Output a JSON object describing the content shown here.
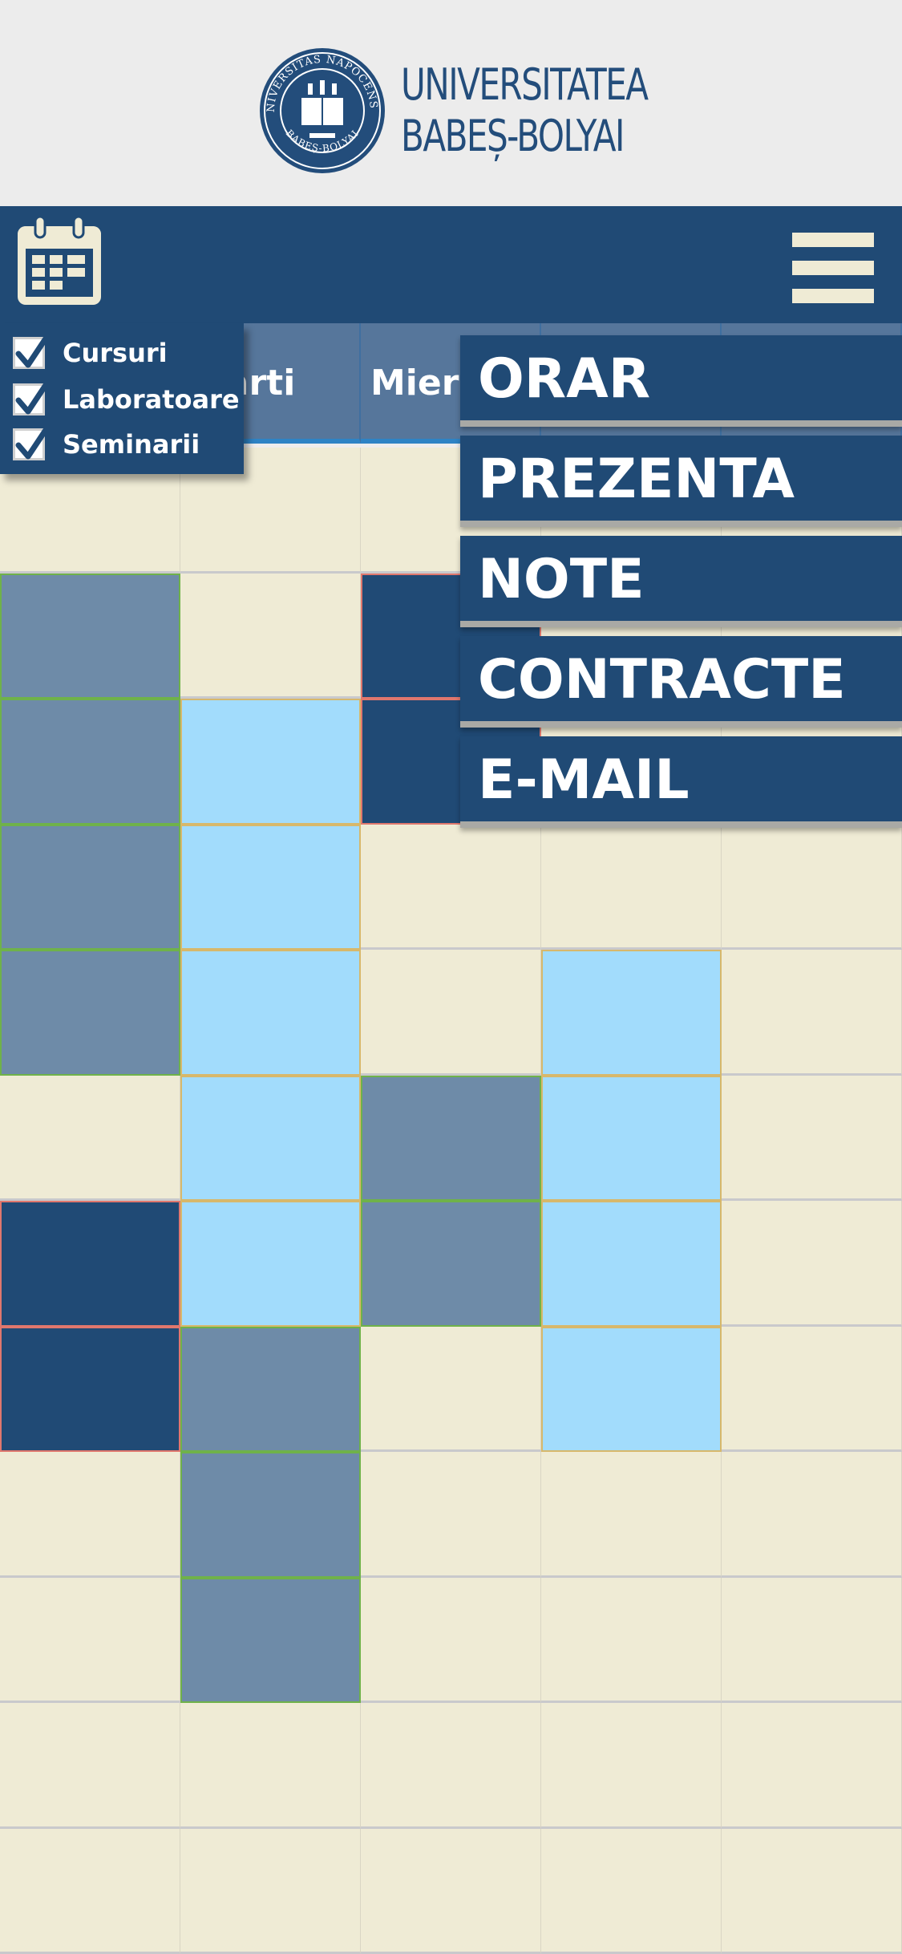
{
  "header": {
    "logo_line1": "UNIVERSITATEA",
    "logo_line2": "BABEȘ-BOLYAI",
    "seal_top_text": "UNIVERSITAS NAPOCENSIS",
    "seal_bottom_text": "BABEȘ-BOLYAI"
  },
  "navbar": {
    "calendar_icon": "calendar-icon",
    "menu_icon": "hamburger-menu-icon"
  },
  "filters": [
    {
      "label": "Cursuri",
      "checked": true
    },
    {
      "label": "Laboratoare",
      "checked": true
    },
    {
      "label": "Seminarii",
      "checked": true
    }
  ],
  "menu": [
    {
      "label": "ORAR"
    },
    {
      "label": "PREZENTA"
    },
    {
      "label": "NOTE"
    },
    {
      "label": "CONTRACTE"
    },
    {
      "label": "E-MAIL"
    }
  ],
  "timetable": {
    "days": [
      "",
      "Marti",
      "Miercuri",
      "",
      ""
    ],
    "rows": [
      [
        "empty",
        "empty",
        "empty",
        "empty",
        "empty"
      ],
      [
        "curs",
        "empty",
        "seminar",
        "empty",
        "empty"
      ],
      [
        "curs",
        "laborator",
        "seminar",
        "empty",
        "empty"
      ],
      [
        "curs",
        "laborator",
        "empty",
        "empty",
        "empty"
      ],
      [
        "curs",
        "laborator",
        "empty",
        "laborator",
        "empty"
      ],
      [
        "empty",
        "laborator",
        "curs",
        "laborator",
        "empty"
      ],
      [
        "seminar",
        "laborator",
        "curs",
        "laborator",
        "empty"
      ],
      [
        "seminar",
        "curs",
        "empty",
        "laborator",
        "empty"
      ],
      [
        "empty",
        "curs",
        "empty",
        "empty",
        "empty"
      ],
      [
        "empty",
        "curs",
        "empty",
        "empty",
        "empty"
      ],
      [
        "empty",
        "empty",
        "empty",
        "empty",
        "empty"
      ],
      [
        "empty",
        "empty",
        "empty",
        "empty",
        "empty"
      ]
    ],
    "colors": {
      "curs": "#6e8ba8",
      "laborator": "#a2dcfc",
      "seminar": "#204a75",
      "empty": "#efebd5"
    }
  }
}
